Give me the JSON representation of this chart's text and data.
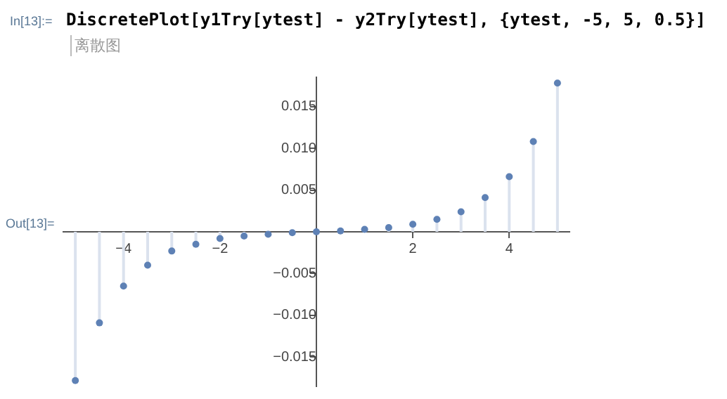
{
  "chart_data": {
    "type": "lollipop",
    "title": "DiscretePlot[y1Try[ytest] - y2Try[ytest], {ytest, -5, 5, 0.5}]",
    "annotations": [
      "In[13]:=",
      "离散图",
      "Out[13]="
    ],
    "x": [
      -5,
      -4.5,
      -4,
      -3.5,
      -3,
      -2.5,
      -2,
      -1.5,
      -1,
      -0.5,
      0,
      0.5,
      1,
      1.5,
      2,
      2.5,
      3,
      3.5,
      4,
      4.5,
      5
    ],
    "values": [
      -0.0178,
      -0.0109,
      -0.0065,
      -0.004,
      -0.0023,
      -0.0015,
      -0.0008,
      -0.0005,
      -0.0003,
      -0.0001,
      0,
      0.0001,
      0.0003,
      0.0005,
      0.0009,
      0.0015,
      0.0024,
      0.0041,
      0.0066,
      0.0108,
      0.0178
    ],
    "color": "#5e81b5",
    "marker": "circle",
    "grid": false,
    "legend": false,
    "xlim": [
      -5.25,
      5.25
    ],
    "ylim": [
      -0.0185,
      0.0185
    ],
    "xticks": [
      {
        "value": -4,
        "label": "−4"
      },
      {
        "value": -2,
        "label": "−2"
      },
      {
        "value": 2,
        "label": "2"
      },
      {
        "value": 4,
        "label": "4"
      }
    ],
    "yticks": [
      {
        "value": -0.015,
        "label": "−0.015"
      },
      {
        "value": -0.01,
        "label": "−0.010"
      },
      {
        "value": -0.005,
        "label": "−0.005"
      },
      {
        "value": 0.005,
        "label": "0.005"
      },
      {
        "value": 0.01,
        "label": "0.010"
      },
      {
        "value": 0.015,
        "label": "0.015"
      }
    ]
  }
}
